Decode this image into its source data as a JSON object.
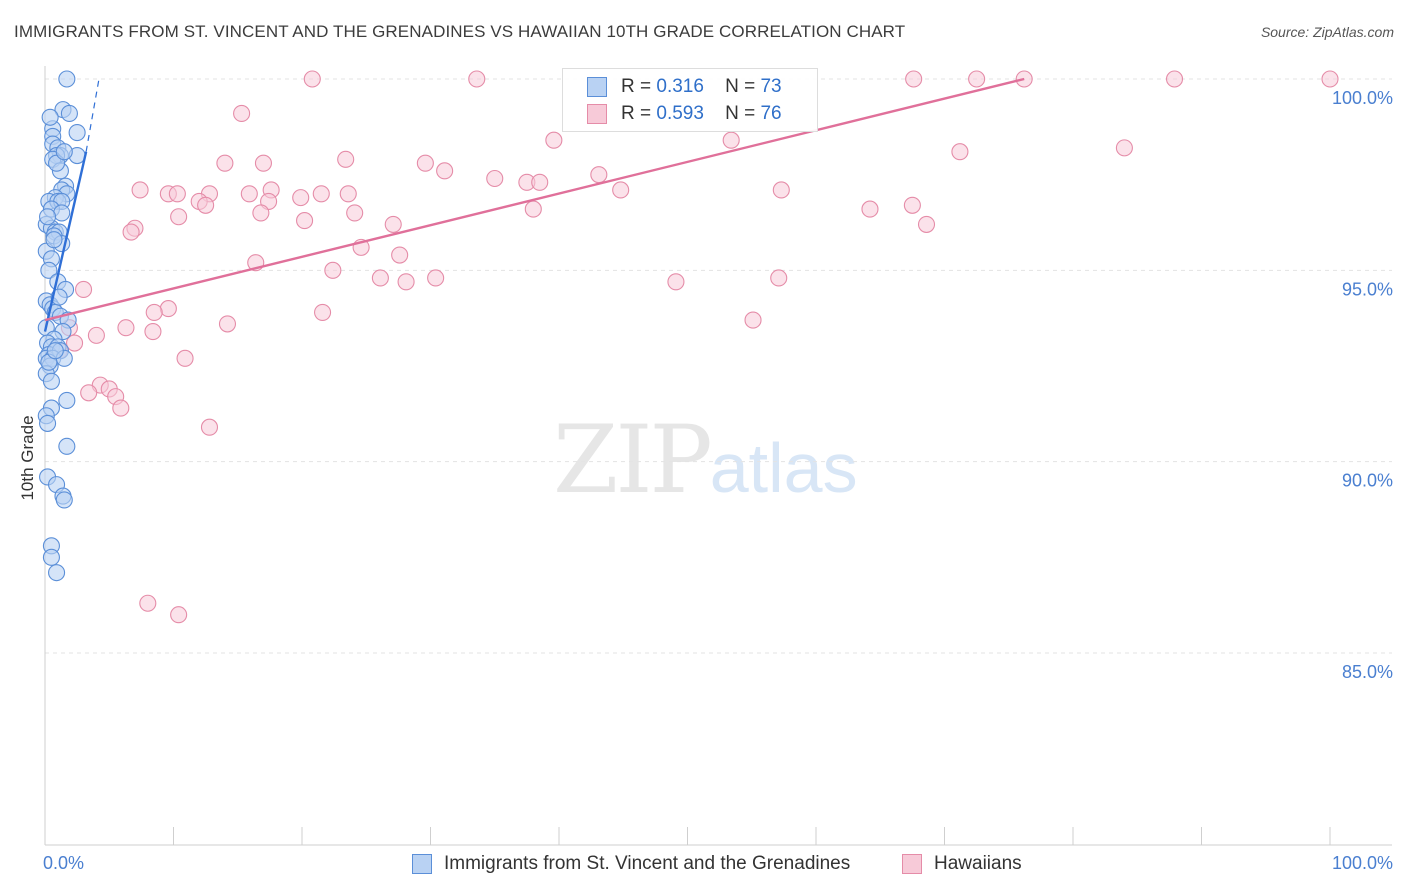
{
  "header": {
    "title": "IMMIGRANTS FROM ST. VINCENT AND THE GRENADINES VS HAWAIIAN 10TH GRADE CORRELATION CHART",
    "source": "Source: ZipAtlas.com"
  },
  "watermark": {
    "zip": "ZIP",
    "atlas": "atlas"
  },
  "legend_top": {
    "r_label": "R =",
    "n_label": "N =",
    "series1": {
      "r": "0.316",
      "n": "73"
    },
    "series2": {
      "r": "0.593",
      "n": "76"
    }
  },
  "colors": {
    "blue_fill": "#b9d2f3",
    "blue_stroke": "#5b8fd8",
    "blue_line": "#2f6fd6",
    "pink_fill": "#f7cad8",
    "pink_stroke": "#e58ca8",
    "pink_line": "#e0709a",
    "axis_text": "#4a7fd0",
    "grid": "#e3e3e3"
  },
  "chart_data": {
    "type": "scatter",
    "title": "IMMIGRANTS FROM ST. VINCENT AND THE GRENADINES VS HAWAIIAN 10TH GRADE CORRELATION CHART",
    "xlabel": "",
    "ylabel": "10th Grade",
    "xlim": [
      0,
      100
    ],
    "ylim": [
      80.5,
      100.5
    ],
    "x_tick_labels": [
      "0.0%",
      "100.0%"
    ],
    "y_ticks": [
      85,
      90,
      95,
      100
    ],
    "y_tick_labels": [
      "85.0%",
      "90.0%",
      "95.0%",
      "100.0%"
    ],
    "grid": true,
    "series": [
      {
        "name": "Immigrants from St. Vincent and the Grenadines",
        "color": "#5b8fd8",
        "points": [
          [
            1.7,
            100.0
          ],
          [
            1.4,
            99.2
          ],
          [
            1.9,
            99.1
          ],
          [
            0.6,
            98.7
          ],
          [
            2.5,
            98.6
          ],
          [
            0.6,
            98.5
          ],
          [
            0.6,
            98.3
          ],
          [
            1.0,
            98.2
          ],
          [
            1.2,
            98.0
          ],
          [
            0.9,
            98.0
          ],
          [
            2.5,
            98.0
          ],
          [
            0.6,
            97.9
          ],
          [
            1.2,
            97.6
          ],
          [
            1.6,
            97.2
          ],
          [
            1.3,
            97.1
          ],
          [
            1.7,
            97.0
          ],
          [
            0.8,
            96.9
          ],
          [
            0.3,
            96.8
          ],
          [
            1.0,
            96.8
          ],
          [
            1.3,
            96.8
          ],
          [
            0.5,
            96.6
          ],
          [
            1.3,
            96.5
          ],
          [
            0.1,
            96.2
          ],
          [
            0.5,
            96.1
          ],
          [
            0.8,
            96.0
          ],
          [
            1.1,
            96.0
          ],
          [
            0.7,
            95.9
          ],
          [
            1.3,
            95.7
          ],
          [
            0.1,
            95.5
          ],
          [
            0.5,
            95.3
          ],
          [
            0.3,
            95.0
          ],
          [
            1.0,
            94.7
          ],
          [
            1.6,
            94.5
          ],
          [
            0.1,
            94.2
          ],
          [
            0.4,
            94.1
          ],
          [
            0.6,
            94.0
          ],
          [
            0.8,
            93.9
          ],
          [
            1.2,
            93.8
          ],
          [
            1.8,
            93.7
          ],
          [
            0.1,
            93.5
          ],
          [
            1.4,
            93.4
          ],
          [
            0.7,
            93.2
          ],
          [
            0.2,
            93.1
          ],
          [
            0.5,
            93.0
          ],
          [
            1.0,
            93.0
          ],
          [
            0.3,
            92.8
          ],
          [
            1.2,
            92.9
          ],
          [
            0.1,
            92.7
          ],
          [
            0.6,
            92.7
          ],
          [
            1.5,
            92.7
          ],
          [
            0.4,
            92.5
          ],
          [
            0.1,
            92.3
          ],
          [
            0.5,
            92.1
          ],
          [
            1.7,
            91.6
          ],
          [
            0.5,
            91.4
          ],
          [
            0.1,
            91.2
          ],
          [
            0.2,
            91.0
          ],
          [
            1.7,
            90.4
          ],
          [
            0.2,
            89.6
          ],
          [
            0.9,
            89.4
          ],
          [
            1.4,
            89.1
          ],
          [
            1.5,
            89.0
          ],
          [
            0.5,
            87.8
          ],
          [
            0.5,
            87.5
          ],
          [
            0.9,
            87.1
          ],
          [
            0.3,
            92.6
          ],
          [
            0.8,
            92.9
          ],
          [
            1.1,
            94.3
          ],
          [
            0.2,
            96.4
          ],
          [
            0.9,
            97.8
          ],
          [
            1.5,
            98.1
          ],
          [
            0.4,
            99.0
          ],
          [
            0.7,
            95.8
          ]
        ]
      },
      {
        "name": "Hawaiians",
        "color": "#e58ca8",
        "points": [
          [
            20.8,
            100.0
          ],
          [
            33.6,
            100.0
          ],
          [
            67.6,
            100.0
          ],
          [
            72.5,
            100.0
          ],
          [
            76.2,
            100.0
          ],
          [
            87.9,
            100.0
          ],
          [
            100.0,
            100.0
          ],
          [
            15.3,
            99.1
          ],
          [
            39.6,
            98.4
          ],
          [
            53.4,
            98.4
          ],
          [
            71.2,
            98.1
          ],
          [
            84.0,
            98.2
          ],
          [
            23.4,
            97.9
          ],
          [
            14.0,
            97.8
          ],
          [
            17.0,
            97.8
          ],
          [
            29.6,
            97.8
          ],
          [
            31.1,
            97.6
          ],
          [
            35.0,
            97.4
          ],
          [
            37.5,
            97.3
          ],
          [
            38.5,
            97.3
          ],
          [
            43.1,
            97.5
          ],
          [
            44.8,
            97.1
          ],
          [
            57.3,
            97.1
          ],
          [
            7.4,
            97.1
          ],
          [
            9.6,
            97.0
          ],
          [
            10.3,
            97.0
          ],
          [
            12.8,
            97.0
          ],
          [
            15.9,
            97.0
          ],
          [
            17.6,
            97.1
          ],
          [
            19.9,
            96.9
          ],
          [
            21.5,
            97.0
          ],
          [
            23.6,
            97.0
          ],
          [
            12.0,
            96.8
          ],
          [
            12.5,
            96.7
          ],
          [
            17.4,
            96.8
          ],
          [
            38.0,
            96.6
          ],
          [
            20.2,
            96.3
          ],
          [
            64.2,
            96.6
          ],
          [
            67.5,
            96.7
          ],
          [
            24.1,
            96.5
          ],
          [
            16.8,
            96.5
          ],
          [
            10.4,
            96.4
          ],
          [
            27.1,
            96.2
          ],
          [
            68.6,
            96.2
          ],
          [
            7.0,
            96.1
          ],
          [
            6.7,
            96.0
          ],
          [
            24.6,
            95.6
          ],
          [
            27.6,
            95.4
          ],
          [
            16.4,
            95.2
          ],
          [
            22.4,
            95.0
          ],
          [
            30.4,
            94.8
          ],
          [
            26.1,
            94.8
          ],
          [
            57.1,
            94.8
          ],
          [
            49.1,
            94.7
          ],
          [
            28.1,
            94.7
          ],
          [
            3.0,
            94.5
          ],
          [
            9.6,
            94.0
          ],
          [
            8.5,
            93.9
          ],
          [
            21.6,
            93.9
          ],
          [
            55.1,
            93.7
          ],
          [
            14.2,
            93.6
          ],
          [
            6.3,
            93.5
          ],
          [
            1.9,
            93.5
          ],
          [
            8.4,
            93.4
          ],
          [
            4.0,
            93.3
          ],
          [
            2.3,
            93.1
          ],
          [
            1.1,
            92.9
          ],
          [
            10.9,
            92.7
          ],
          [
            4.3,
            92.0
          ],
          [
            5.0,
            91.9
          ],
          [
            3.4,
            91.8
          ],
          [
            5.5,
            91.7
          ],
          [
            5.9,
            91.4
          ],
          [
            12.8,
            90.9
          ],
          [
            8.0,
            86.3
          ],
          [
            10.4,
            86.0
          ]
        ]
      }
    ],
    "trend_lines": [
      {
        "series": "Immigrants from St. Vincent and the Grenadines",
        "x": [
          0,
          3.2
        ],
        "y": [
          93.4,
          98.1
        ],
        "style": "solid"
      },
      {
        "series": "Immigrants from St. Vincent and the Grenadines",
        "x": [
          3.2,
          4.2
        ],
        "y": [
          98.1,
          100.0
        ],
        "style": "dashed"
      },
      {
        "series": "Hawaiians",
        "x": [
          0,
          76.2
        ],
        "y": [
          93.7,
          100.0
        ],
        "style": "solid"
      }
    ]
  }
}
